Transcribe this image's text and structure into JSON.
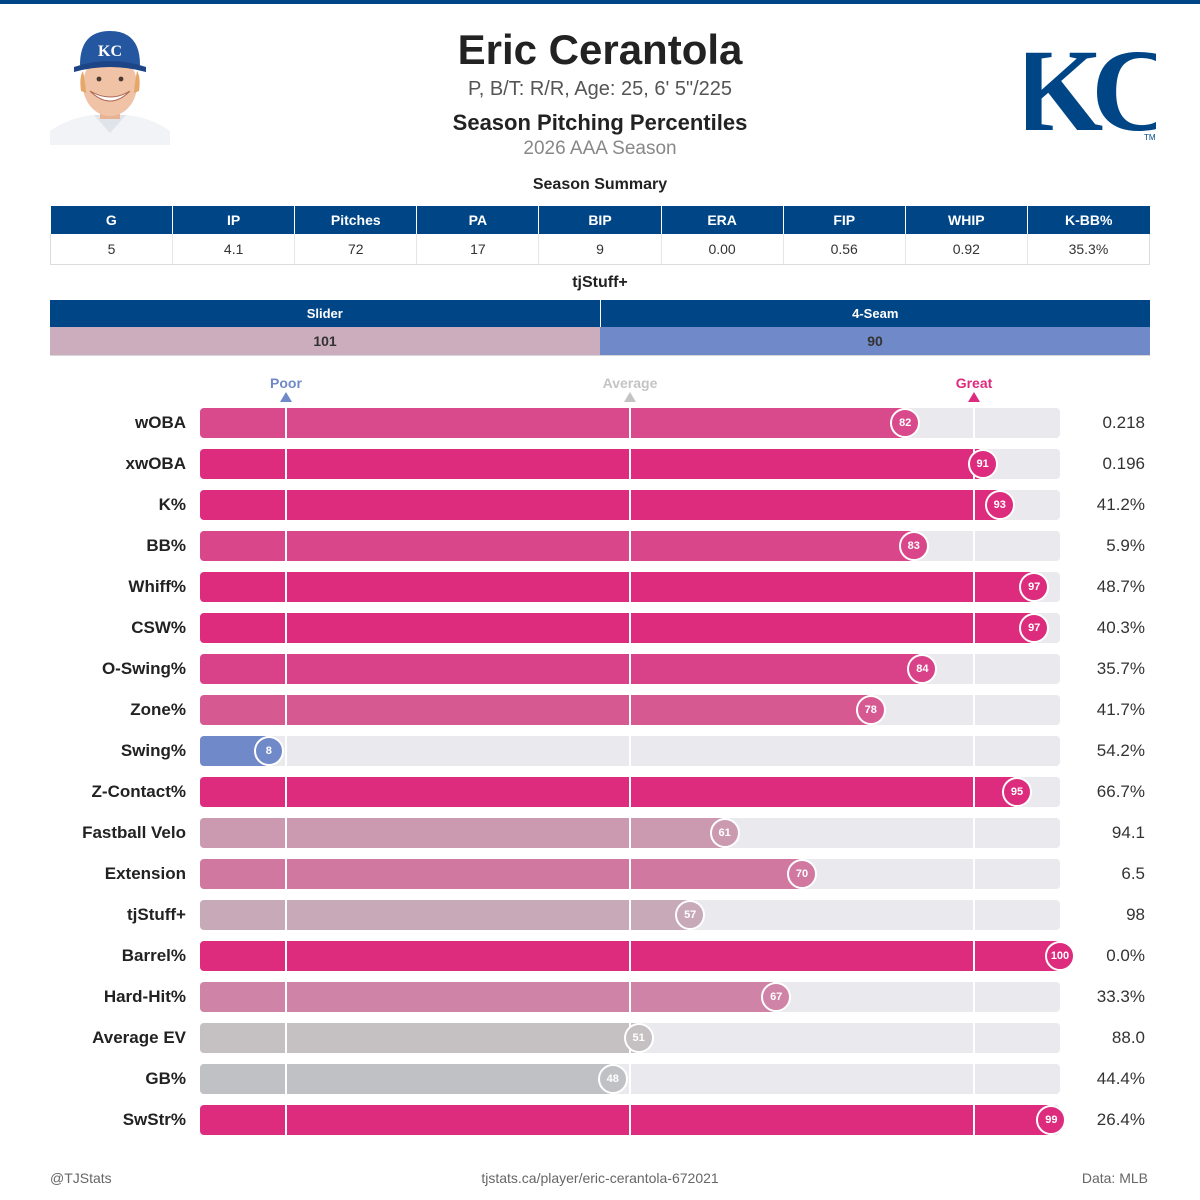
{
  "header": {
    "player_name": "Eric Cerantola",
    "bio": "P, B/T: R/R, Age: 25, 6' 5\"/225",
    "report_title": "Season Pitching Percentiles",
    "season": "2026 AAA Season",
    "cap_letters": "KC",
    "team_logo_text": "KC",
    "trademark": "TM",
    "colors": {
      "team_primary": "#004687",
      "great": "#dd2b7d",
      "poor": "#7089c8",
      "average": "#c4c4c4"
    }
  },
  "summary": {
    "title": "Season Summary",
    "columns": [
      "G",
      "IP",
      "Pitches",
      "PA",
      "BIP",
      "ERA",
      "FIP",
      "WHIP",
      "K-BB%"
    ],
    "values": [
      "5",
      "4.1",
      "72",
      "17",
      "9",
      "0.00",
      "0.56",
      "0.92",
      "35.3%"
    ]
  },
  "tjstuff": {
    "title": "tjStuff+",
    "pitches": [
      {
        "name": "Slider",
        "value": "101",
        "color": "#cbadbd"
      },
      {
        "name": "4-Seam",
        "value": "90",
        "color": "#7089c8"
      }
    ]
  },
  "chart_data": {
    "type": "bar",
    "scale_labels": {
      "poor": "Poor",
      "average": "Average",
      "great": "Great"
    },
    "scale_markers": [
      10,
      50,
      90
    ],
    "xlim": [
      0,
      100
    ],
    "categories": [
      "wOBA",
      "xwOBA",
      "K%",
      "BB%",
      "Whiff%",
      "CSW%",
      "O-Swing%",
      "Zone%",
      "Swing%",
      "Z-Contact%",
      "Fastball Velo",
      "Extension",
      "tjStuff+",
      "Barrel%",
      "Hard-Hit%",
      "Average EV",
      "GB%",
      "SwStr%"
    ],
    "percentiles": [
      82,
      91,
      93,
      83,
      97,
      97,
      84,
      78,
      8,
      95,
      61,
      70,
      57,
      100,
      67,
      51,
      48,
      99
    ],
    "stat_values": [
      "0.218",
      "0.196",
      "41.2%",
      "5.9%",
      "48.7%",
      "40.3%",
      "35.7%",
      "41.7%",
      "54.2%",
      "66.7%",
      "94.1",
      "6.5",
      "98",
      "0.0%",
      "33.3%",
      "88.0",
      "44.4%",
      "26.4%"
    ]
  },
  "footer": {
    "left": "@TJStats",
    "center": "tjstats.ca/player/eric-cerantola-672021",
    "right": "Data: MLB"
  }
}
